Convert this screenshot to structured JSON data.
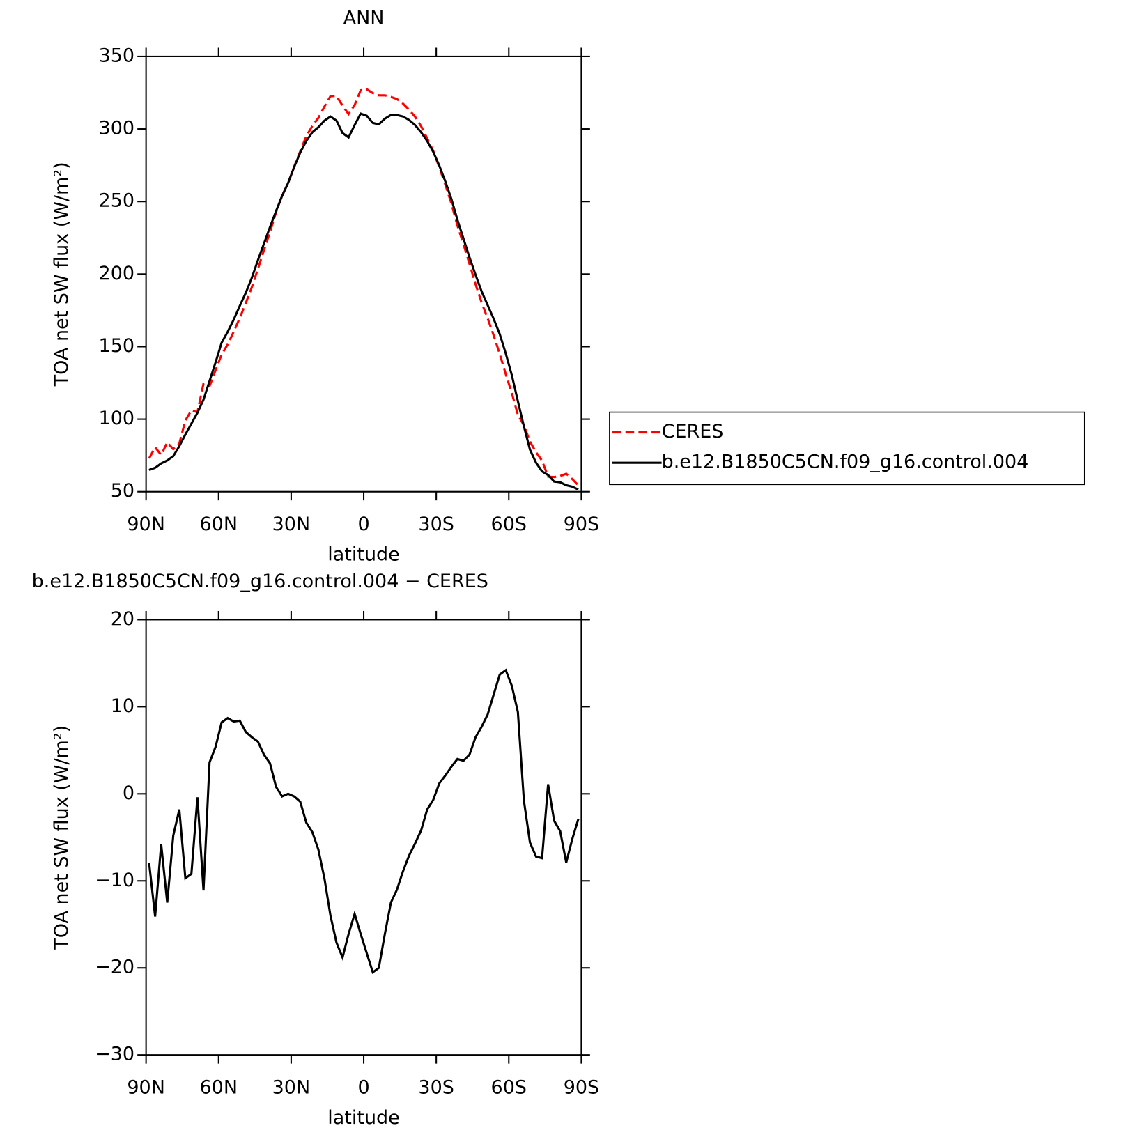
{
  "chart_data": [
    {
      "type": "line",
      "title": "ANN",
      "xlabel": "latitude",
      "ylabel": "TOA net SW flux (W/m²)",
      "x": [
        88.75,
        86.25,
        83.75,
        81.25,
        78.75,
        76.25,
        73.75,
        71.25,
        68.75,
        66.25,
        63.75,
        61.25,
        58.75,
        56.25,
        53.75,
        51.25,
        48.75,
        46.25,
        43.75,
        41.25,
        38.75,
        36.25,
        33.75,
        31.25,
        28.75,
        26.25,
        23.75,
        21.25,
        18.75,
        16.25,
        13.75,
        11.25,
        8.75,
        6.25,
        3.75,
        1.25,
        -1.25,
        -3.75,
        -6.25,
        -8.75,
        -11.25,
        -13.75,
        -16.25,
        -18.75,
        -21.25,
        -23.75,
        -26.25,
        -28.75,
        -31.25,
        -33.75,
        -36.25,
        -38.75,
        -41.25,
        -43.75,
        -46.25,
        -48.75,
        -51.25,
        -53.75,
        -56.25,
        -58.75,
        -61.25,
        -63.75,
        -66.25,
        -68.75,
        -71.25,
        -73.75,
        -76.25,
        -78.75,
        -81.25,
        -83.75,
        -86.25,
        -88.75
      ],
      "series": [
        {
          "name": "CERES",
          "color": "#ff0000",
          "line_style": "dashed",
          "values": [
            72.9,
            80.6,
            75.3,
            84.0,
            79.3,
            83.2,
            99.1,
            106.1,
            104.8,
            124.5,
            122.7,
            133.8,
            144.5,
            151.5,
            160.3,
            169.7,
            180.0,
            191.0,
            203.5,
            216.5,
            228.9,
            242.6,
            254.1,
            262.8,
            274.1,
            284.6,
            295.0,
            302.1,
            307.6,
            315.4,
            322.6,
            322.8,
            316.0,
            310.3,
            316.5,
            326.7,
            327.4,
            324.7,
            323.2,
            323.2,
            322.1,
            320.6,
            317.5,
            313.3,
            308.4,
            301.9,
            293.5,
            284.9,
            273.6,
            261.7,
            248.7,
            233.4,
            220.6,
            207.0,
            193.0,
            180.4,
            169.5,
            157.7,
            144.9,
            131.0,
            117.9,
            103.0,
            95.8,
            84.6,
            77.2,
            71.4,
            60.4,
            60.1,
            60.8,
            62.4,
            58.7,
            54.4
          ]
        },
        {
          "name": "b.e12.B1850C5CN.f09_g16.control.004",
          "color": "#000000",
          "line_style": "solid",
          "values": [
            65.0,
            66.5,
            69.5,
            71.5,
            74.5,
            81.4,
            89.4,
            96.9,
            104.4,
            113.4,
            126.3,
            139.2,
            152.7,
            160.2,
            168.6,
            178.1,
            187.1,
            197.5,
            209.5,
            221.0,
            232.4,
            243.4,
            253.8,
            262.8,
            273.8,
            283.7,
            291.7,
            297.7,
            301.2,
            305.7,
            308.6,
            305.7,
            297.2,
            294.2,
            302.7,
            310.6,
            309.1,
            304.2,
            303.2,
            307.1,
            309.6,
            309.6,
            308.6,
            306.2,
            302.7,
            297.7,
            291.7,
            284.2,
            274.8,
            263.8,
            251.8,
            237.4,
            224.4,
            211.5,
            199.5,
            188.1,
            178.6,
            169.1,
            158.6,
            145.2,
            130.3,
            112.4,
            95.0,
            79.0,
            70.0,
            64.0,
            61.5,
            57.0,
            56.5,
            54.5,
            53.5,
            51.5
          ]
        }
      ],
      "xlim": [
        90,
        -90
      ],
      "xticks": [
        {
          "value": 90,
          "label": "90N"
        },
        {
          "value": 60,
          "label": "60N"
        },
        {
          "value": 30,
          "label": "30N"
        },
        0,
        {
          "value": -30,
          "label": "30S"
        },
        {
          "value": -60,
          "label": "60S"
        },
        {
          "value": -90,
          "label": "90S"
        }
      ],
      "ylim": [
        50,
        350
      ],
      "yticks": [
        50,
        100,
        150,
        200,
        250,
        300,
        350
      ],
      "legend": "outside-right"
    },
    {
      "type": "line",
      "title": "b.e12.B1850C5CN.f09_g16.control.004 − CERES",
      "xlabel": "latitude",
      "ylabel": "TOA net SW flux (W/m²)",
      "x": [
        88.75,
        86.25,
        83.75,
        81.25,
        78.75,
        76.25,
        73.75,
        71.25,
        68.75,
        66.25,
        63.75,
        61.25,
        58.75,
        56.25,
        53.75,
        51.25,
        48.75,
        46.25,
        43.75,
        41.25,
        38.75,
        36.25,
        33.75,
        31.25,
        28.75,
        26.25,
        23.75,
        21.25,
        18.75,
        16.25,
        13.75,
        11.25,
        8.75,
        6.25,
        3.75,
        1.25,
        -1.25,
        -3.75,
        -6.25,
        -8.75,
        -11.25,
        -13.75,
        -16.25,
        -18.75,
        -21.25,
        -23.75,
        -26.25,
        -28.75,
        -31.25,
        -33.75,
        -36.25,
        -38.75,
        -41.25,
        -43.75,
        -46.25,
        -48.75,
        -51.25,
        -53.75,
        -56.25,
        -58.75,
        -61.25,
        -63.75,
        -66.25,
        -68.75,
        -71.25,
        -73.75,
        -76.25,
        -78.75,
        -81.25,
        -83.75,
        -86.25,
        -88.75
      ],
      "series": [
        {
          "color": "#000000",
          "line_style": "solid",
          "values": [
            -7.9,
            -14.1,
            -5.8,
            -12.5,
            -4.8,
            -1.8,
            -9.7,
            -9.2,
            -0.4,
            -11.1,
            3.6,
            5.4,
            8.2,
            8.7,
            8.3,
            8.4,
            7.1,
            6.5,
            6.0,
            4.5,
            3.5,
            0.8,
            -0.3,
            0.0,
            -0.3,
            -0.9,
            -3.3,
            -4.4,
            -6.4,
            -9.7,
            -14.0,
            -17.1,
            -18.8,
            -16.1,
            -13.8,
            -16.1,
            -18.3,
            -20.5,
            -20.0,
            -16.1,
            -12.5,
            -11.0,
            -8.9,
            -7.1,
            -5.7,
            -4.2,
            -1.8,
            -0.7,
            1.2,
            2.1,
            3.1,
            4.0,
            3.8,
            4.5,
            6.5,
            7.7,
            9.1,
            11.4,
            13.7,
            14.2,
            12.4,
            9.4,
            -0.8,
            -5.6,
            -7.2,
            -7.4,
            1.1,
            -3.1,
            -4.3,
            -7.9,
            -5.2,
            -2.9
          ]
        }
      ],
      "xlim": [
        90,
        -90
      ],
      "xticks": [
        {
          "value": 90,
          "label": "90N"
        },
        {
          "value": 60,
          "label": "60N"
        },
        {
          "value": 30,
          "label": "30N"
        },
        0,
        {
          "value": -30,
          "label": "30S"
        },
        {
          "value": -60,
          "label": "60S"
        },
        {
          "value": -90,
          "label": "90S"
        }
      ],
      "ylim": [
        -30,
        20
      ],
      "yticks": [
        {
          "value": -30,
          "label": "−30"
        },
        {
          "value": -20,
          "label": "−20"
        },
        {
          "value": -10,
          "label": "−10"
        },
        0,
        10,
        20
      ]
    }
  ]
}
